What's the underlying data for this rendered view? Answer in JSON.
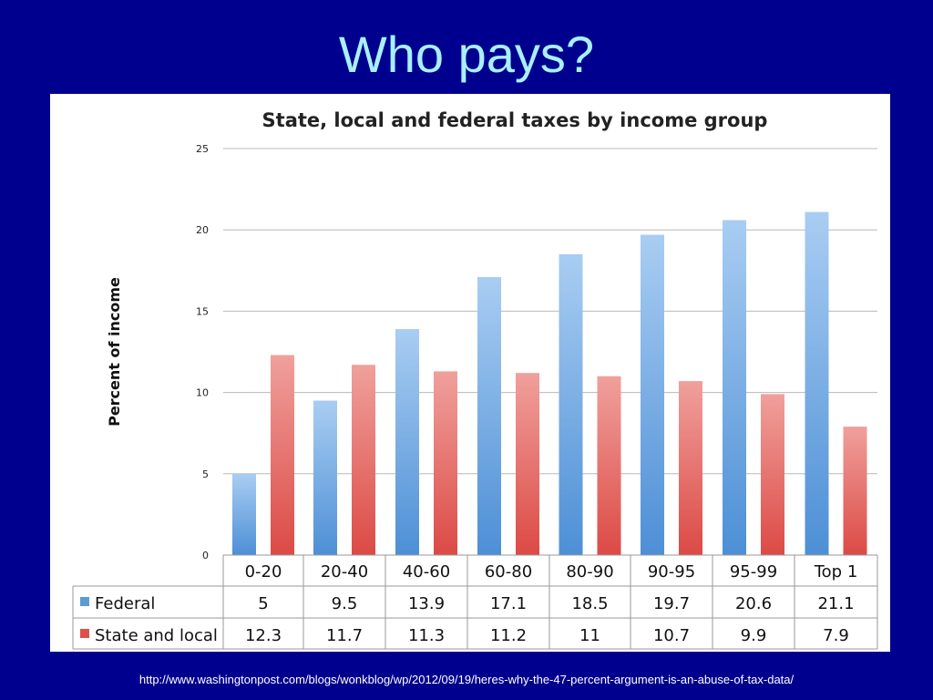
{
  "slide": {
    "title": "Who pays?",
    "source_url": "http://www.washingtonpost.com/blogs/wonkblog/wp/2012/09/19/heres-why-the-47-percent-argument-is-an-abuse-of-tax-data/"
  },
  "chart_data": {
    "type": "bar",
    "title": "State, local and federal taxes by income group",
    "xlabel": "",
    "ylabel": "Percent of income",
    "ylim": [
      0,
      25
    ],
    "yticks": [
      0,
      5,
      10,
      15,
      20,
      25
    ],
    "grid": true,
    "legend": "data-table",
    "categories": [
      "0-20",
      "20-40",
      "40-60",
      "60-80",
      "80-90",
      "90-95",
      "95-99",
      "Top 1"
    ],
    "series": [
      {
        "name": "Federal",
        "values": [
          5,
          9.5,
          13.9,
          17.1,
          18.5,
          19.7,
          20.6,
          21.1
        ],
        "color": "#5b9bd5"
      },
      {
        "name": "State and local",
        "values": [
          12.3,
          11.7,
          11.3,
          11.2,
          11,
          10.7,
          9.9,
          7.9
        ],
        "color": "#e0504a"
      }
    ]
  },
  "colors": {
    "background": "#00008f",
    "title": "#a8f0ff",
    "federal": "#5b9bd5",
    "state_local": "#e0504a"
  }
}
